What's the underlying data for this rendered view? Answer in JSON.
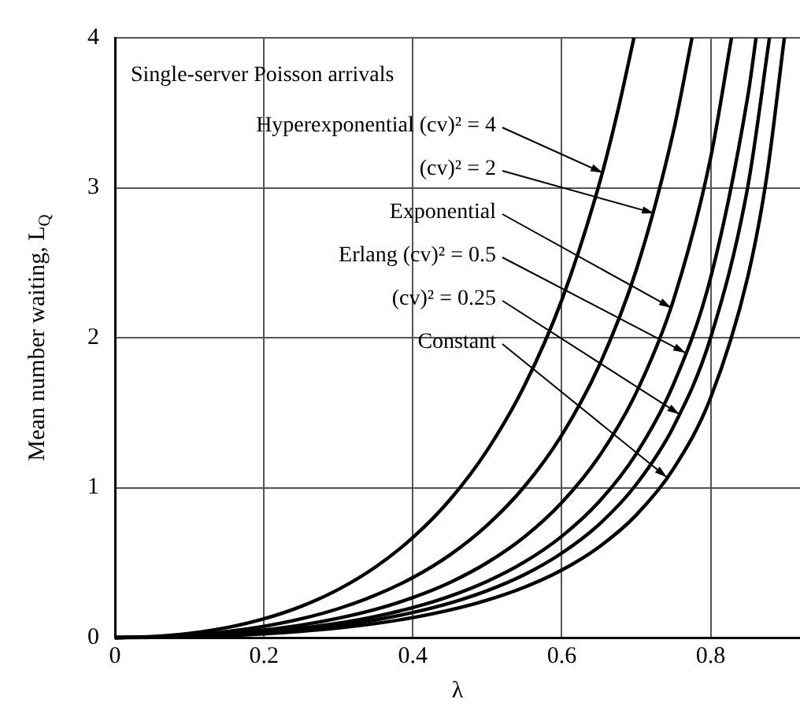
{
  "chart_data": {
    "type": "line",
    "xlabel": "λ",
    "ylabel": "Mean number waiting, L$_{Q}$",
    "xlim": [
      0,
      0.92
    ],
    "ylim": [
      0,
      4
    ],
    "xticks": [
      0,
      0.2,
      0.4,
      0.6,
      0.8
    ],
    "yticks": [
      0,
      1,
      2,
      3,
      4
    ],
    "grid": true,
    "legend": false,
    "marker": "none",
    "line_style": "solid",
    "series": [
      {
        "color": "#000000",
        "x": [
          0,
          0.05,
          0.1,
          0.15,
          0.2,
          0.25,
          0.3,
          0.35,
          0.4,
          0.45,
          0.5,
          0.55,
          0.6,
          0.65,
          0.675,
          0.697
        ],
        "values": [
          0,
          0.007,
          0.028,
          0.066,
          0.125,
          0.208,
          0.321,
          0.471,
          0.667,
          0.92,
          1.25,
          1.681,
          2.25,
          3.018,
          3.505,
          4
        ]
      },
      {
        "color": "#000000",
        "x": [
          0,
          0.05,
          0.1,
          0.15,
          0.2,
          0.25,
          0.3,
          0.35,
          0.4,
          0.45,
          0.5,
          0.55,
          0.6,
          0.65,
          0.7,
          0.75,
          0.775
        ],
        "values": [
          0,
          0.004,
          0.017,
          0.04,
          0.075,
          0.125,
          0.193,
          0.283,
          0.4,
          0.552,
          0.75,
          1.008,
          1.35,
          1.811,
          2.45,
          3.375,
          4
        ]
      },
      {
        "color": "#000000",
        "x": [
          0,
          0.05,
          0.1,
          0.15,
          0.2,
          0.25,
          0.3,
          0.35,
          0.4,
          0.45,
          0.5,
          0.55,
          0.6,
          0.65,
          0.7,
          0.75,
          0.8,
          0.828
        ],
        "values": [
          0,
          0.003,
          0.011,
          0.026,
          0.05,
          0.083,
          0.129,
          0.188,
          0.267,
          0.368,
          0.5,
          0.672,
          0.9,
          1.207,
          1.633,
          2.25,
          3.2,
          4
        ]
      },
      {
        "color": "#000000",
        "x": [
          0,
          0.05,
          0.1,
          0.15,
          0.2,
          0.25,
          0.3,
          0.35,
          0.4,
          0.45,
          0.5,
          0.55,
          0.6,
          0.65,
          0.7,
          0.75,
          0.8,
          0.85,
          0.861
        ],
        "values": [
          0,
          0.002,
          0.008,
          0.02,
          0.038,
          0.063,
          0.096,
          0.141,
          0.2,
          0.276,
          0.375,
          0.504,
          0.675,
          0.905,
          1.225,
          1.688,
          2.4,
          3.613,
          4
        ]
      },
      {
        "color": "#000000",
        "x": [
          0,
          0.05,
          0.1,
          0.15,
          0.2,
          0.25,
          0.3,
          0.35,
          0.4,
          0.45,
          0.5,
          0.55,
          0.6,
          0.65,
          0.7,
          0.75,
          0.8,
          0.85,
          0.879
        ],
        "values": [
          0,
          0.002,
          0.007,
          0.017,
          0.031,
          0.052,
          0.08,
          0.118,
          0.167,
          0.23,
          0.313,
          0.42,
          0.563,
          0.754,
          1.021,
          1.406,
          2,
          3.01,
          4
        ]
      },
      {
        "color": "#000000",
        "x": [
          0,
          0.05,
          0.1,
          0.15,
          0.2,
          0.25,
          0.3,
          0.35,
          0.4,
          0.45,
          0.5,
          0.55,
          0.6,
          0.65,
          0.7,
          0.75,
          0.8,
          0.85,
          0.875,
          0.899
        ],
        "values": [
          0,
          0.001,
          0.006,
          0.013,
          0.025,
          0.042,
          0.064,
          0.094,
          0.133,
          0.184,
          0.25,
          0.336,
          0.45,
          0.604,
          0.817,
          1.125,
          1.6,
          2.408,
          3.063,
          4
        ]
      }
    ],
    "annotations": [
      "Single-server Poisson arrivals",
      {
        "text": "Hyperexponential (cv)² = 4",
        "x": 0.655,
        "y": 3.1
      },
      {
        "text": "(cv)² = 2",
        "x": 0.724,
        "y": 2.83
      },
      {
        "text": "Exponential",
        "x": 0.747,
        "y": 2.2
      },
      {
        "text": "Erlang (cv)² = 0.5",
        "x": 0.766,
        "y": 1.9
      },
      {
        "text": "(cv)² = 0.25",
        "x": 0.758,
        "y": 1.49
      },
      {
        "text": "Constant",
        "x": 0.741,
        "y": 1.07
      }
    ]
  }
}
